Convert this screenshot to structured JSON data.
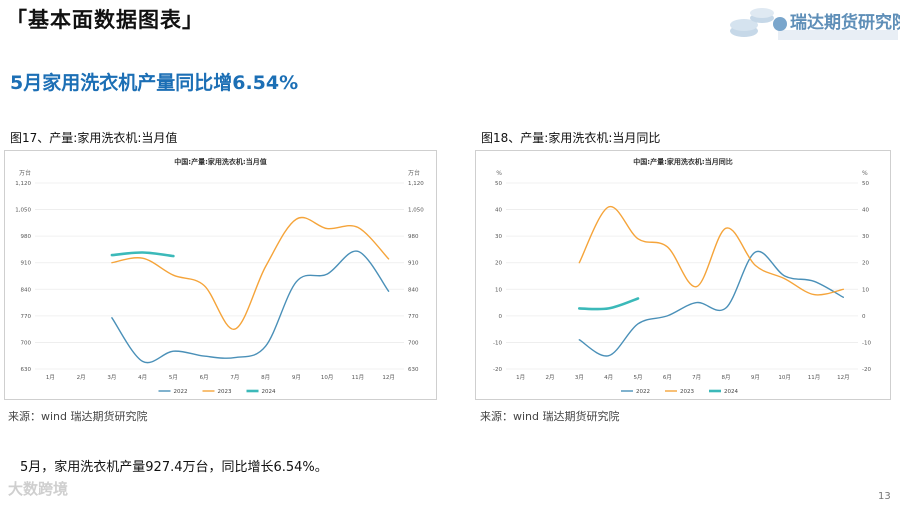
{
  "header": {
    "section_title": "「基本面数据图表」",
    "brand_name": "瑞达期货研究院"
  },
  "headline": "5月家用洗衣机产量同比增6.54%",
  "figures": [
    {
      "caption": "图17、产量:家用洗衣机:当月值",
      "source": "来源：wind   瑞达期货研究院"
    },
    {
      "caption": "图18、产量:家用洗衣机:当月同比",
      "source": "来源：wind   瑞达期货研究院"
    }
  ],
  "summary": "5月，家用洗衣机产量927.4万台，同比增长6.54%。",
  "footer": {
    "watermark": "大数跨境",
    "page_number": "13"
  },
  "colors": {
    "s2022": "#4a90b8",
    "s2023": "#f5a43a",
    "s2024": "#3bb9b9"
  },
  "chart_data": [
    {
      "type": "line",
      "title": "中国:产量:家用洗衣机:当月值",
      "unit_left": "万台",
      "unit_right": "万台",
      "categories": [
        "1月",
        "2月",
        "3月",
        "4月",
        "5月",
        "6月",
        "7月",
        "8月",
        "9月",
        "10月",
        "11月",
        "12月"
      ],
      "ylim": [
        630,
        1120
      ],
      "yticks": [
        630,
        700,
        770,
        840,
        910,
        980,
        1050,
        1120
      ],
      "ytick_labels": [
        "630",
        "700",
        "770",
        "840",
        "910",
        "980",
        "1,050",
        "1,120"
      ],
      "series": [
        {
          "name": "2022",
          "values": [
            null,
            null,
            765,
            650,
            677,
            664,
            660,
            690,
            860,
            880,
            940,
            835
          ]
        },
        {
          "name": "2023",
          "values": [
            null,
            null,
            910,
            922,
            877,
            850,
            735,
            900,
            1025,
            1000,
            1003,
            920
          ]
        },
        {
          "name": "2024",
          "values": [
            null,
            null,
            930,
            937,
            927.4,
            null,
            null,
            null,
            null,
            null,
            null,
            null
          ]
        }
      ]
    },
    {
      "type": "line",
      "title": "中国:产量:家用洗衣机:当月同比",
      "unit_left": "%",
      "unit_right": "%",
      "categories": [
        "1月",
        "2月",
        "3月",
        "4月",
        "5月",
        "6月",
        "7月",
        "8月",
        "9月",
        "10月",
        "11月",
        "12月"
      ],
      "ylim": [
        -20,
        50
      ],
      "yticks": [
        -20,
        -10,
        0,
        10,
        20,
        30,
        40,
        50
      ],
      "ytick_labels": [
        "-20",
        "-10",
        "0",
        "10",
        "20",
        "30",
        "40",
        "50"
      ],
      "series": [
        {
          "name": "2022",
          "values": [
            null,
            null,
            -9,
            -15,
            -3,
            0,
            5,
            3,
            24,
            15,
            13,
            7
          ]
        },
        {
          "name": "2023",
          "values": [
            null,
            null,
            20,
            41,
            29,
            26,
            11,
            33,
            19,
            14,
            8,
            10
          ]
        },
        {
          "name": "2024",
          "values": [
            null,
            null,
            2.8,
            2.8,
            6.54,
            null,
            null,
            null,
            null,
            null,
            null,
            null
          ]
        }
      ]
    }
  ]
}
